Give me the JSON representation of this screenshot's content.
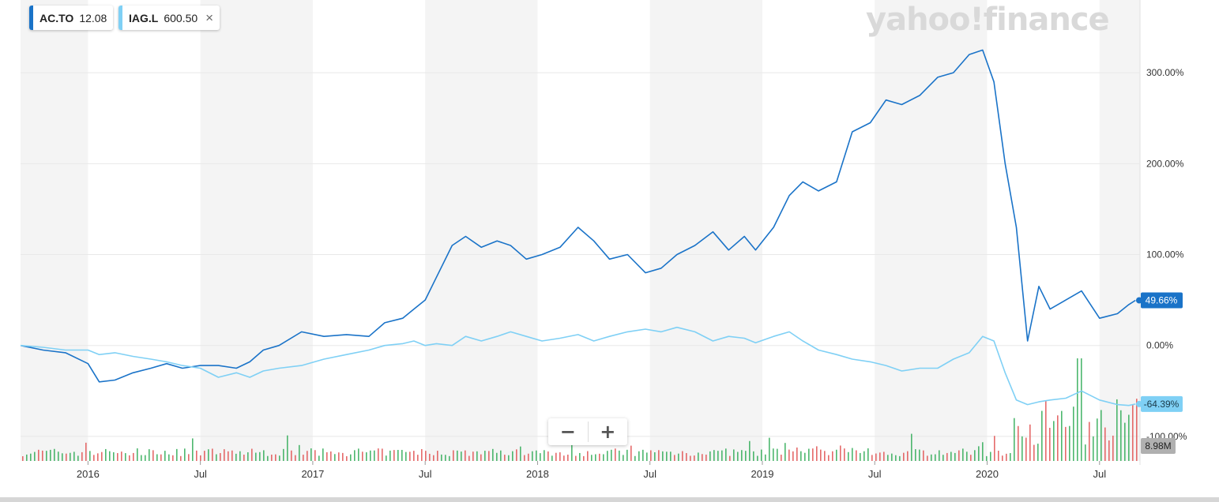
{
  "legend": {
    "items": [
      {
        "symbol": "AC.TO",
        "value": "12.08",
        "color": "#1a73c8",
        "removable": false
      },
      {
        "symbol": "IAG.L",
        "value": "600.50",
        "color": "#7fd0f5",
        "removable": true
      }
    ],
    "close_icon": "×"
  },
  "logo": "yahoo!finance",
  "zoom": {
    "minus": "−",
    "plus": "+"
  },
  "chart_data": {
    "type": "line",
    "x_ticks": [
      {
        "label": "2016",
        "x": 2016.0
      },
      {
        "label": "Jul",
        "x": 2016.5
      },
      {
        "label": "2017",
        "x": 2017.0
      },
      {
        "label": "Jul",
        "x": 2017.5
      },
      {
        "label": "2018",
        "x": 2018.0
      },
      {
        "label": "Jul",
        "x": 2018.5
      },
      {
        "label": "2019",
        "x": 2019.0
      },
      {
        "label": "Jul",
        "x": 2019.5
      },
      {
        "label": "2020",
        "x": 2020.0
      },
      {
        "label": "Jul",
        "x": 2020.5
      }
    ],
    "xlim": [
      2015.7,
      2020.68
    ],
    "y_ticks": [
      {
        "label": "300.00%",
        "value": 300
      },
      {
        "label": "200.00%",
        "value": 200
      },
      {
        "label": "100.00%",
        "value": 100
      },
      {
        "label": "0.00%",
        "value": 0
      },
      {
        "label": "-100.00%",
        "value": -100
      }
    ],
    "ylim": [
      -127,
      380
    ],
    "series": [
      {
        "name": "AC.TO",
        "color": "#1a73c8",
        "last_label": "49.66%",
        "x": [
          2015.7,
          2015.8,
          2015.9,
          2016.0,
          2016.05,
          2016.12,
          2016.2,
          2016.28,
          2016.35,
          2016.42,
          2016.5,
          2016.58,
          2016.66,
          2016.72,
          2016.78,
          2016.85,
          2016.95,
          2017.05,
          2017.15,
          2017.25,
          2017.32,
          2017.4,
          2017.45,
          2017.5,
          2017.55,
          2017.62,
          2017.68,
          2017.75,
          2017.82,
          2017.88,
          2017.95,
          2018.02,
          2018.1,
          2018.18,
          2018.25,
          2018.32,
          2018.4,
          2018.48,
          2018.55,
          2018.62,
          2018.7,
          2018.78,
          2018.85,
          2018.92,
          2018.97,
          2019.05,
          2019.12,
          2019.18,
          2019.25,
          2019.33,
          2019.4,
          2019.48,
          2019.55,
          2019.62,
          2019.7,
          2019.78,
          2019.85,
          2019.92,
          2019.98,
          2020.03,
          2020.08,
          2020.13,
          2020.18,
          2020.23,
          2020.28,
          2020.35,
          2020.42,
          2020.5,
          2020.58,
          2020.63,
          2020.66
        ],
        "y": [
          0,
          -5,
          -8,
          -20,
          -40,
          -38,
          -30,
          -25,
          -20,
          -25,
          -22,
          -22,
          -25,
          -18,
          -5,
          0,
          15,
          10,
          12,
          10,
          25,
          30,
          40,
          50,
          75,
          110,
          120,
          108,
          115,
          110,
          95,
          100,
          108,
          130,
          115,
          95,
          100,
          80,
          85,
          100,
          110,
          125,
          105,
          120,
          105,
          130,
          165,
          180,
          170,
          180,
          235,
          245,
          270,
          265,
          275,
          295,
          300,
          320,
          325,
          290,
          200,
          130,
          5,
          65,
          40,
          50,
          60,
          30,
          35,
          45,
          49.66
        ]
      },
      {
        "name": "IAG.L",
        "color": "#7fd0f5",
        "last_label": "-64.39%",
        "x": [
          2015.7,
          2015.8,
          2015.9,
          2016.0,
          2016.05,
          2016.12,
          2016.2,
          2016.28,
          2016.35,
          2016.42,
          2016.5,
          2016.58,
          2016.66,
          2016.72,
          2016.78,
          2016.85,
          2016.95,
          2017.05,
          2017.15,
          2017.25,
          2017.32,
          2017.4,
          2017.45,
          2017.5,
          2017.55,
          2017.62,
          2017.68,
          2017.75,
          2017.82,
          2017.88,
          2017.95,
          2018.02,
          2018.1,
          2018.18,
          2018.25,
          2018.32,
          2018.4,
          2018.48,
          2018.55,
          2018.62,
          2018.7,
          2018.78,
          2018.85,
          2018.92,
          2018.97,
          2019.05,
          2019.12,
          2019.18,
          2019.25,
          2019.33,
          2019.4,
          2019.48,
          2019.55,
          2019.62,
          2019.7,
          2019.78,
          2019.85,
          2019.92,
          2019.98,
          2020.03,
          2020.08,
          2020.13,
          2020.18,
          2020.23,
          2020.28,
          2020.35,
          2020.42,
          2020.5,
          2020.58,
          2020.63,
          2020.66
        ],
        "y": [
          0,
          -2,
          -5,
          -5,
          -10,
          -8,
          -12,
          -15,
          -18,
          -22,
          -25,
          -35,
          -30,
          -35,
          -28,
          -25,
          -22,
          -15,
          -10,
          -5,
          0,
          2,
          5,
          0,
          2,
          0,
          10,
          5,
          10,
          15,
          10,
          5,
          8,
          12,
          5,
          10,
          15,
          18,
          15,
          20,
          15,
          5,
          10,
          8,
          3,
          10,
          15,
          5,
          -5,
          -10,
          -15,
          -18,
          -22,
          -28,
          -25,
          -25,
          -15,
          -8,
          10,
          5,
          -30,
          -60,
          -65,
          -62,
          -60,
          -58,
          -50,
          -60,
          -65,
          -66,
          -64.39
        ]
      }
    ],
    "volume": {
      "last_label": "8.98M",
      "up_color": "#2eaa55",
      "down_color": "#e05050"
    }
  }
}
